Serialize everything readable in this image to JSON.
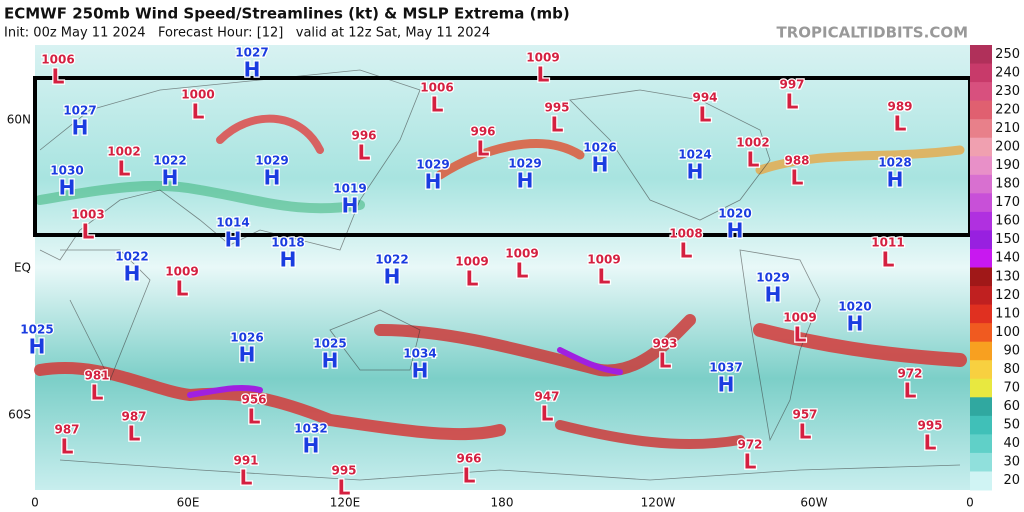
{
  "header": {
    "title": "ECMWF 250mb Wind Speed/Streamlines (kt) & MSLP Extrema (mb)",
    "init": "Init: 00z May 11 2024   Forecast Hour: [12]   valid at 12z Sat, May 11 2024",
    "brand": "TROPICALTIDBITS.COM"
  },
  "axes": {
    "lat": [
      "60N",
      "EQ",
      "60S"
    ],
    "lon": [
      "0",
      "60E",
      "120E",
      "180",
      "120W",
      "60W",
      "0"
    ]
  },
  "legend": {
    "levels": [
      250,
      240,
      230,
      220,
      210,
      200,
      190,
      180,
      170,
      160,
      150,
      140,
      130,
      120,
      110,
      100,
      90,
      80,
      70,
      60,
      50,
      40,
      30,
      20
    ],
    "colors": [
      "#b0305a",
      "#c83a6a",
      "#d8507e",
      "#e06070",
      "#e8808a",
      "#f0a0b0",
      "#e890c8",
      "#d870d0",
      "#c850d8",
      "#b030e0",
      "#9820e0",
      "#c818f0",
      "#a01818",
      "#c02020",
      "#e03020",
      "#f05a20",
      "#f8a020",
      "#f8d040",
      "#e8e840",
      "#30a8a0",
      "#40c0b8",
      "#60d0c8",
      "#90e0dc",
      "#d0f4f4"
    ]
  },
  "centers": [
    {
      "kind": "L",
      "value": "1006"
    },
    {
      "kind": "H",
      "value": "1027"
    },
    {
      "kind": "L",
      "value": "1009"
    },
    {
      "kind": "L",
      "value": "1000"
    },
    {
      "kind": "L",
      "value": "1006"
    },
    {
      "kind": "L",
      "value": "997"
    },
    {
      "kind": "L",
      "value": "994"
    },
    {
      "kind": "L",
      "value": "989"
    },
    {
      "kind": "H",
      "value": "1027"
    },
    {
      "kind": "L",
      "value": "995"
    },
    {
      "kind": "L",
      "value": "996"
    },
    {
      "kind": "L",
      "value": "996"
    },
    {
      "kind": "L",
      "value": "1002"
    },
    {
      "kind": "H",
      "value": "1022"
    },
    {
      "kind": "H",
      "value": "1029"
    },
    {
      "kind": "H",
      "value": "1026"
    },
    {
      "kind": "H",
      "value": "1024"
    },
    {
      "kind": "L",
      "value": "1002"
    },
    {
      "kind": "L",
      "value": "988"
    },
    {
      "kind": "H",
      "value": "1028"
    },
    {
      "kind": "H",
      "value": "1030"
    },
    {
      "kind": "H",
      "value": "1029"
    },
    {
      "kind": "H",
      "value": "1029"
    },
    {
      "kind": "H",
      "value": "1019"
    },
    {
      "kind": "L",
      "value": "1003"
    },
    {
      "kind": "H",
      "value": "1014"
    },
    {
      "kind": "H",
      "value": "1020"
    },
    {
      "kind": "L",
      "value": "1008"
    },
    {
      "kind": "H",
      "value": "1018"
    },
    {
      "kind": "L",
      "value": "1011"
    },
    {
      "kind": "H",
      "value": "1022"
    },
    {
      "kind": "L",
      "value": "1009"
    },
    {
      "kind": "H",
      "value": "1022"
    },
    {
      "kind": "L",
      "value": "1009"
    },
    {
      "kind": "L",
      "value": "1009"
    },
    {
      "kind": "L",
      "value": "1009"
    },
    {
      "kind": "H",
      "value": "1029"
    },
    {
      "kind": "H",
      "value": "1020"
    },
    {
      "kind": "L",
      "value": "1009"
    },
    {
      "kind": "H",
      "value": "1025"
    },
    {
      "kind": "H",
      "value": "1026"
    },
    {
      "kind": "H",
      "value": "1025"
    },
    {
      "kind": "L",
      "value": "993"
    },
    {
      "kind": "H",
      "value": "1034"
    },
    {
      "kind": "H",
      "value": "1037"
    },
    {
      "kind": "L",
      "value": "981"
    },
    {
      "kind": "L",
      "value": "972"
    },
    {
      "kind": "L",
      "value": "947"
    },
    {
      "kind": "L",
      "value": "956"
    },
    {
      "kind": "L",
      "value": "987"
    },
    {
      "kind": "L",
      "value": "987"
    },
    {
      "kind": "L",
      "value": "957"
    },
    {
      "kind": "H",
      "value": "1032"
    },
    {
      "kind": "L",
      "value": "995"
    },
    {
      "kind": "L",
      "value": "972"
    },
    {
      "kind": "L",
      "value": "991"
    },
    {
      "kind": "L",
      "value": "966"
    },
    {
      "kind": "L",
      "value": "995"
    }
  ]
}
